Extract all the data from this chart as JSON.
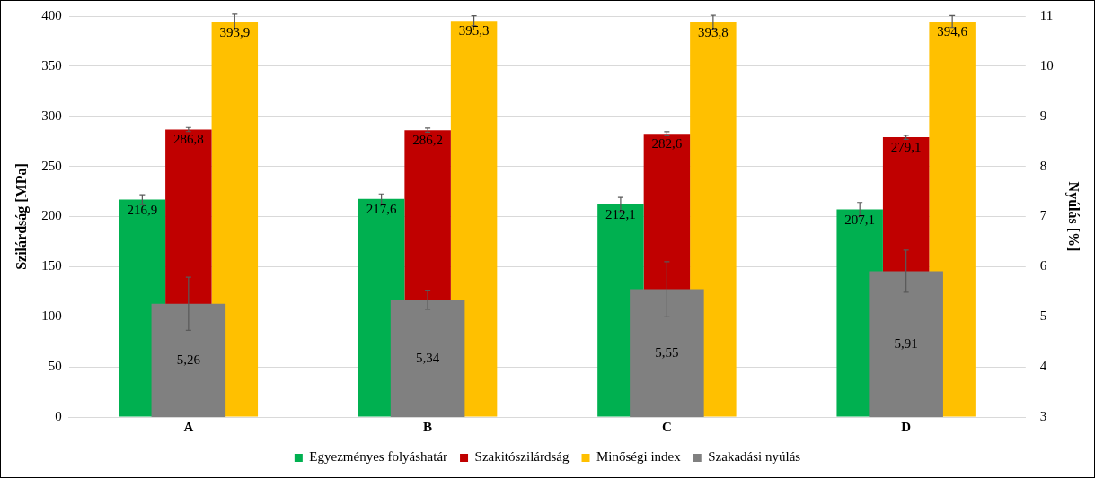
{
  "chart_data": {
    "type": "bar",
    "ylabel": "Szilárdság [MPa]",
    "y2label": "Nyúlás [%]",
    "categories": [
      "A",
      "B",
      "C",
      "D"
    ],
    "series": [
      {
        "name": "Egyezményes folyáshatár",
        "color": "#00b050",
        "values": [
          216.9,
          217.6,
          212.1,
          207.1
        ],
        "errors": [
          5,
          5,
          7,
          7
        ],
        "value_labels": [
          "216,9",
          "217,6",
          "212,1",
          "207,1"
        ]
      },
      {
        "name": "Szakitószilárdság",
        "color": "#c00000",
        "values": [
          286.8,
          286.2,
          282.6,
          279.1
        ],
        "errors": [
          2,
          2,
          2,
          2
        ],
        "value_labels": [
          "286,8",
          "286,2",
          "282,6",
          "279,1"
        ]
      },
      {
        "name": "Minőségi index",
        "color": "#ffc000",
        "values": [
          393.9,
          395.3,
          393.8,
          394.6
        ],
        "errors": [
          8,
          5,
          7,
          6
        ],
        "value_labels": [
          "393,9",
          "395,3",
          "393,8",
          "394,6"
        ]
      },
      {
        "name": "Szakadási nyúlás",
        "color": "#808080",
        "axis": "y2",
        "values": [
          5.26,
          5.34,
          5.55,
          5.91
        ],
        "errors": [
          0.53,
          0.19,
          0.55,
          0.42
        ],
        "value_labels": [
          "5,26",
          "5,34",
          "5,55",
          "5,91"
        ]
      }
    ],
    "ylim": [
      0,
      400
    ],
    "yticks": [
      0,
      50,
      100,
      150,
      200,
      250,
      300,
      350,
      400
    ],
    "y2lim": [
      3,
      11
    ],
    "y2ticks": [
      3,
      4,
      5,
      6,
      7,
      8,
      9,
      10,
      11
    ],
    "grid": "y",
    "legend": "bottom"
  }
}
